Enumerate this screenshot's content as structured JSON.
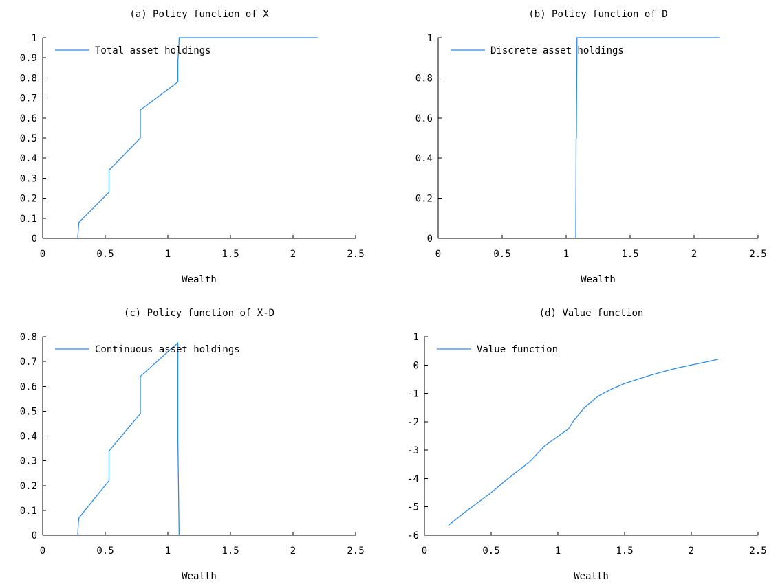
{
  "colors": {
    "series": "#2f8ce6",
    "axis": "#000000",
    "background": "#ffffff"
  },
  "chart_data": [
    {
      "type": "line",
      "title": "(a) Policy function of X",
      "xlabel": "Wealth",
      "ylabel": "",
      "xlim": [
        0,
        2.5
      ],
      "ylim": [
        0,
        1
      ],
      "xticks": [
        0,
        0.5,
        1,
        1.5,
        2,
        2.5
      ],
      "xtick_labels": [
        "0",
        "0.5",
        "1",
        "1.5",
        "2",
        "2.5"
      ],
      "yticks": [
        0,
        0.1,
        0.2,
        0.3,
        0.4,
        0.5,
        0.6,
        0.7,
        0.8,
        0.9,
        1
      ],
      "ytick_labels": [
        "0",
        "0.1",
        "0.2",
        "0.3",
        "0.4",
        "0.5",
        "0.6",
        "0.7",
        "0.8",
        "0.9",
        "1"
      ],
      "grid": false,
      "legend": "top-left",
      "series": [
        {
          "name": "Total asset holdings",
          "points": [
            [
              0.28,
              0.0
            ],
            [
              0.285,
              0.05
            ],
            [
              0.29,
              0.08
            ],
            [
              0.53,
              0.23
            ],
            [
              0.53,
              0.34
            ],
            [
              0.78,
              0.5
            ],
            [
              0.78,
              0.64
            ],
            [
              1.08,
              0.78
            ],
            [
              1.08,
              0.88
            ],
            [
              1.09,
              0.99
            ],
            [
              1.09,
              1.0
            ],
            [
              2.2,
              1.0
            ]
          ]
        }
      ]
    },
    {
      "type": "line",
      "title": "(b) Policy function of D",
      "xlabel": "Wealth",
      "ylabel": "",
      "xlim": [
        0,
        2.5
      ],
      "ylim": [
        0,
        1
      ],
      "xticks": [
        0,
        0.5,
        1,
        1.5,
        2,
        2.5
      ],
      "xtick_labels": [
        "0",
        "0.5",
        "1",
        "1.5",
        "2",
        "2.5"
      ],
      "yticks": [
        0,
        0.2,
        0.4,
        0.6,
        0.8,
        1
      ],
      "ytick_labels": [
        "0",
        "0.2",
        "0.4",
        "0.6",
        "0.8",
        "1"
      ],
      "grid": false,
      "legend": "top-left",
      "series": [
        {
          "name": "Discrete asset holdings",
          "points": [
            [
              1.075,
              0.0
            ],
            [
              1.078,
              0.5
            ],
            [
              1.08,
              0.5
            ],
            [
              1.085,
              1.0
            ],
            [
              2.2,
              1.0
            ]
          ]
        }
      ]
    },
    {
      "type": "line",
      "title": "(c) Policy function of X-D",
      "xlabel": "Wealth",
      "ylabel": "",
      "xlim": [
        0,
        2.5
      ],
      "ylim": [
        0,
        0.8
      ],
      "xticks": [
        0,
        0.5,
        1,
        1.5,
        2,
        2.5
      ],
      "xtick_labels": [
        "0",
        "0.5",
        "1",
        "1.5",
        "2",
        "2.5"
      ],
      "yticks": [
        0,
        0.1,
        0.2,
        0.3,
        0.4,
        0.5,
        0.6,
        0.7,
        0.8
      ],
      "ytick_labels": [
        "0",
        "0.1",
        "0.2",
        "0.3",
        "0.4",
        "0.5",
        "0.6",
        "0.7",
        "0.8"
      ],
      "grid": false,
      "legend": "top-left",
      "series": [
        {
          "name": "Continuous asset holdings",
          "points": [
            [
              0.28,
              0.0
            ],
            [
              0.285,
              0.05
            ],
            [
              0.29,
              0.07
            ],
            [
              0.53,
              0.22
            ],
            [
              0.53,
              0.34
            ],
            [
              0.78,
              0.49
            ],
            [
              0.78,
              0.64
            ],
            [
              1.08,
              0.775
            ],
            [
              1.08,
              0.38
            ],
            [
              1.09,
              0.0
            ]
          ]
        }
      ]
    },
    {
      "type": "line",
      "title": "(d) Value function",
      "xlabel": "Wealth",
      "ylabel": "",
      "xlim": [
        0,
        2.5
      ],
      "ylim": [
        -6,
        1
      ],
      "xticks": [
        0,
        0.5,
        1,
        1.5,
        2,
        2.5
      ],
      "xtick_labels": [
        "0",
        "0.5",
        "1",
        "1.5",
        "2",
        "2.5"
      ],
      "yticks": [
        -6,
        -5,
        -4,
        -3,
        -2,
        -1,
        0,
        1
      ],
      "ytick_labels": [
        "-6",
        "-5",
        "-4",
        "-3",
        "-2",
        "-1",
        "0",
        "1"
      ],
      "grid": false,
      "legend": "top-left",
      "series": [
        {
          "name": "Value function",
          "points": [
            [
              0.18,
              -5.65
            ],
            [
              0.3,
              -5.2
            ],
            [
              0.5,
              -4.5
            ],
            [
              0.6,
              -4.1
            ],
            [
              0.79,
              -3.4
            ],
            [
              0.9,
              -2.85
            ],
            [
              1.08,
              -2.25
            ],
            [
              1.12,
              -1.95
            ],
            [
              1.2,
              -1.5
            ],
            [
              1.3,
              -1.1
            ],
            [
              1.4,
              -0.85
            ],
            [
              1.5,
              -0.65
            ],
            [
              1.6,
              -0.5
            ],
            [
              1.7,
              -0.35
            ],
            [
              1.8,
              -0.22
            ],
            [
              1.9,
              -0.1
            ],
            [
              2.0,
              0.0
            ],
            [
              2.1,
              0.1
            ],
            [
              2.2,
              0.2
            ]
          ]
        }
      ]
    }
  ]
}
